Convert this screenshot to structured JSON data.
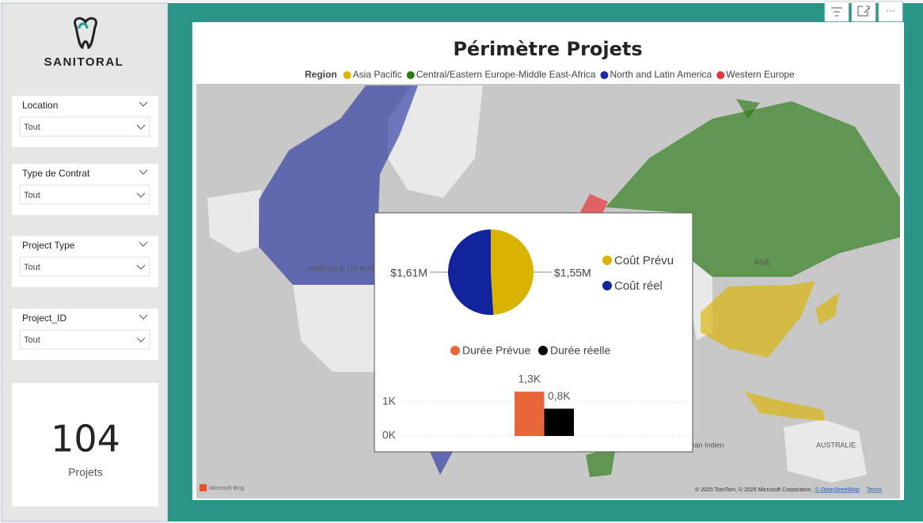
{
  "logo": {
    "text": "SANITORAL"
  },
  "filters": [
    {
      "label": "Location",
      "value": "Tout"
    },
    {
      "label": "Type de Contrat",
      "value": "Tout"
    },
    {
      "label": "Project Type",
      "value": "Tout"
    },
    {
      "label": "Project_ID",
      "value": "Tout"
    }
  ],
  "card": {
    "value": 104,
    "label": "Projets"
  },
  "map": {
    "title": "Périmètre Projets",
    "legend_title": "Region",
    "regions": [
      {
        "name": "Asia Pacific",
        "color": "#d9b300"
      },
      {
        "name": "Central/Eastern Europe-Middle East-Africa",
        "color": "#2a7a12"
      },
      {
        "name": "North and Latin America",
        "color": "#1a2a9c"
      },
      {
        "name": "Western Europe",
        "color": "#e8333a"
      }
    ],
    "place_labels": [
      "AMÉRIQUE DU NORD",
      "ASIE",
      "AUSTRALIE",
      "Océan Indien"
    ],
    "attribution": "Microsoft Bing",
    "credits": "© 2025 TomTom, © 2025 Microsoft Corporation,",
    "osm_link": "© OpenStreetMap",
    "terms_link": "Terms"
  },
  "pie_chart": {
    "type": "pie",
    "series": [
      {
        "name": "Coût Prévu",
        "color": "#d9b300",
        "value": 1550000,
        "value_label": "$1,55M"
      },
      {
        "name": "Coût réel",
        "color": "#12239e",
        "value": 1610000,
        "value_label": "$1,61M"
      }
    ]
  },
  "bar_chart": {
    "type": "bar",
    "series": [
      {
        "name": "Durée Prévue",
        "color": "#e8663a",
        "values": [
          1300
        ],
        "value_labels": [
          "1,3K"
        ]
      },
      {
        "name": "Durée réelle",
        "color": "#000000",
        "values": [
          800
        ],
        "value_labels": [
          "0,8K"
        ]
      }
    ],
    "ylim": [
      0,
      1600
    ],
    "yticks": [
      {
        "value": 0,
        "label": "0K"
      },
      {
        "value": 1000,
        "label": "1K"
      }
    ]
  }
}
